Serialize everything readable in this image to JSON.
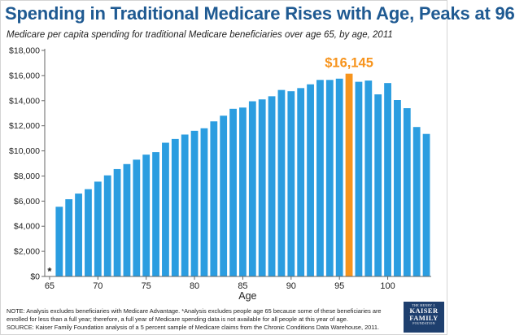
{
  "title": "Spending in Traditional Medicare Rises with Age, Peaks at 96",
  "subtitle": "Medicare per capita spending for traditional Medicare beneficiaries over age 65, by age, 2011",
  "note": "NOTE: Analysis excludes beneficiaries with Medicare Advantage. *Analysis excludes people age 65 because some of these beneficiaries are enrolled for less than a full year; therefore, a full year of Medicare spending data is not available for all people at this year of age.",
  "source": "SOURCE: Kaiser Family Foundation analysis of a 5 percent sample of Medicare claims from the Chronic Conditions Data Warehouse, 2011.",
  "logo": {
    "line1": "THE HENRY J.",
    "line2": "KAISER",
    "line3": "FAMILY",
    "line4": "FOUNDATION"
  },
  "colors": {
    "title": "#1f5a92",
    "bar": "#2b9de0",
    "highlight": "#f7941d"
  },
  "chart_data": {
    "type": "bar",
    "title": "",
    "xlabel": "Age",
    "ylabel": "",
    "x": [
      65,
      66,
      67,
      68,
      69,
      70,
      71,
      72,
      73,
      74,
      75,
      76,
      77,
      78,
      79,
      80,
      81,
      82,
      83,
      84,
      85,
      86,
      87,
      88,
      89,
      90,
      91,
      92,
      93,
      94,
      95,
      96,
      97,
      98,
      99,
      100,
      101,
      102,
      103,
      104
    ],
    "values": [
      null,
      5550,
      6150,
      6600,
      6950,
      7550,
      8050,
      8550,
      8950,
      9300,
      9700,
      9900,
      10650,
      10950,
      11300,
      11600,
      11800,
      12350,
      12800,
      13350,
      13450,
      13950,
      14100,
      14350,
      14850,
      14750,
      15000,
      15300,
      15650,
      15650,
      15750,
      16145,
      15500,
      15600,
      14500,
      15400,
      14050,
      13400,
      11900,
      11350
    ],
    "highlight": {
      "x": 96,
      "value": 16145,
      "label": "$16,145"
    },
    "annotation": {
      "x": 65,
      "label": "*"
    },
    "xticks": [
      "65",
      "70",
      "75",
      "80",
      "85",
      "90",
      "95",
      "100"
    ],
    "yticks": [
      "$0",
      "$2,000",
      "$4,000",
      "$6,000",
      "$8,000",
      "$10,000",
      "$12,000",
      "$14,000",
      "$16,000",
      "$18,000"
    ],
    "ylim": [
      0,
      18000
    ],
    "grid": false,
    "legend": "none"
  }
}
